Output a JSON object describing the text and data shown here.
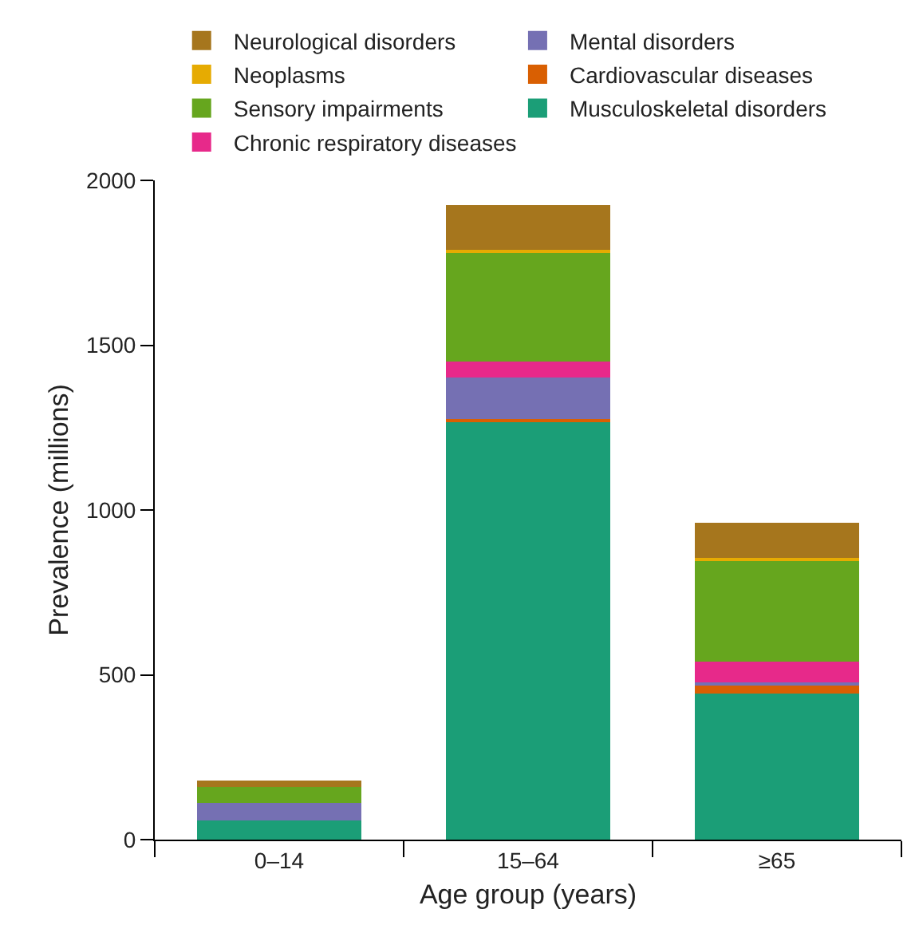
{
  "chart_data": {
    "type": "bar",
    "stacked": true,
    "xlabel": "Age group (years)",
    "ylabel": "Prevalence (millions)",
    "categories": [
      "0–14",
      "15–64",
      "≥65"
    ],
    "series": [
      {
        "name": "Musculoskeletal disorders",
        "color": "#1b9e77",
        "values": [
          58,
          1266,
          444
        ]
      },
      {
        "name": "Cardiovascular diseases",
        "color": "#d95f02",
        "values": [
          0,
          10,
          24
        ]
      },
      {
        "name": "Mental disorders",
        "color": "#7570b3",
        "values": [
          53,
          126,
          10
        ]
      },
      {
        "name": "Chronic respiratory diseases",
        "color": "#e7298a",
        "values": [
          0,
          48,
          63
        ]
      },
      {
        "name": "Sensory impairments",
        "color": "#66a61e",
        "values": [
          48,
          329,
          304
        ]
      },
      {
        "name": "Neoplasms",
        "color": "#e6ab02",
        "values": [
          0,
          10,
          10
        ]
      },
      {
        "name": "Neurological disorders",
        "color": "#a6761d",
        "values": [
          19,
          135,
          106
        ]
      }
    ],
    "ylim": [
      0,
      2000
    ],
    "yticks": [
      0,
      500,
      1000,
      1500,
      2000
    ],
    "grid": false,
    "legend": "top"
  }
}
